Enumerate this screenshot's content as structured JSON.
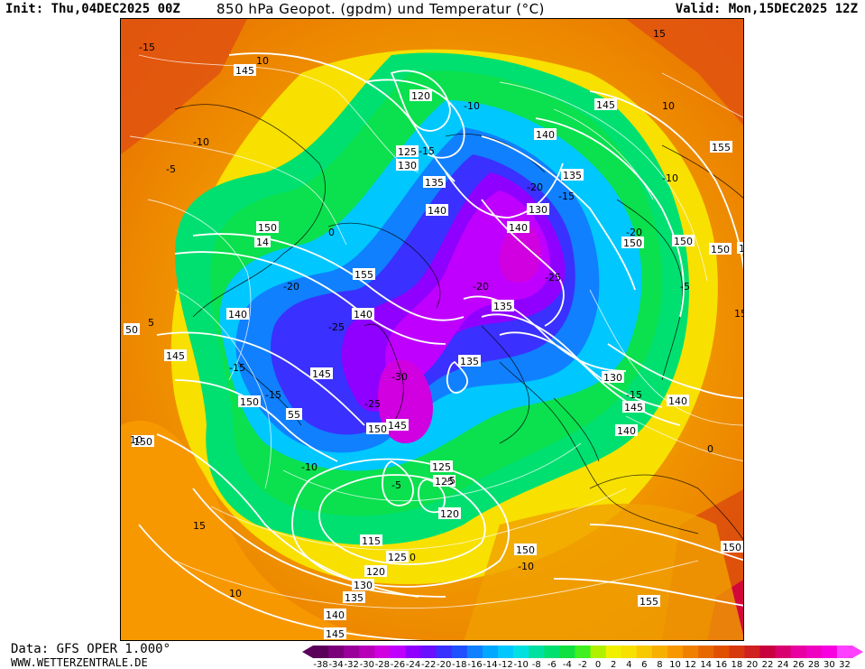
{
  "header": {
    "init": "Init: Thu,04DEC2025 00Z",
    "title": "850 hPa Geopot. (gpdm) und Temperatur (°C)",
    "valid": "Valid: Mon,15DEC2025 12Z"
  },
  "footer": {
    "data_source": "Data: GFS OPER 1.000°",
    "website": "WWW.WETTERZENTRALE.DE"
  },
  "legend": {
    "ticks": [
      "-38",
      "-34",
      "-32",
      "-30",
      "-28",
      "-26",
      "-24",
      "-22",
      "-20",
      "-18",
      "-16",
      "-14",
      "-12",
      "-10",
      "-8",
      "-6",
      "-4",
      "-2",
      "0",
      "2",
      "4",
      "6",
      "8",
      "10",
      "12",
      "14",
      "16",
      "18",
      "20",
      "22",
      "24",
      "26",
      "28",
      "30",
      "32"
    ],
    "colors": [
      "#5a005a",
      "#7a007a",
      "#9a009a",
      "#b800b8",
      "#d000e0",
      "#c000ff",
      "#9000ff",
      "#6a10ff",
      "#3a30ff",
      "#2050ff",
      "#1080ff",
      "#00a8ff",
      "#00c8ff",
      "#00e0e0",
      "#00e0a0",
      "#00e070",
      "#10e040",
      "#40f020",
      "#b0f000",
      "#f0f000",
      "#f8e000",
      "#f8c800",
      "#f8b000",
      "#f89800",
      "#f08000",
      "#e86800",
      "#e05000",
      "#d83810",
      "#d02020",
      "#c80040",
      "#d80070",
      "#e800a0",
      "#f000c0",
      "#f800e0",
      "#ff40ff"
    ]
  },
  "geopotential_labels": [
    {
      "text": "145"
    },
    {
      "text": "120"
    },
    {
      "text": "125"
    },
    {
      "text": "130"
    },
    {
      "text": "135"
    },
    {
      "text": "140"
    },
    {
      "text": "150"
    },
    {
      "text": "14"
    },
    {
      "text": "155"
    },
    {
      "text": "140"
    },
    {
      "text": "145"
    },
    {
      "text": "140"
    },
    {
      "text": "145"
    },
    {
      "text": "150"
    },
    {
      "text": "55"
    },
    {
      "text": "150"
    },
    {
      "text": "145"
    },
    {
      "text": "140"
    },
    {
      "text": "135"
    },
    {
      "text": "130"
    },
    {
      "text": "140"
    },
    {
      "text": "150"
    },
    {
      "text": "155"
    },
    {
      "text": "150"
    },
    {
      "text": "135"
    },
    {
      "text": "130"
    },
    {
      "text": "140"
    },
    {
      "text": "145"
    },
    {
      "text": "140"
    },
    {
      "text": "135"
    },
    {
      "text": "145"
    },
    {
      "text": "150"
    },
    {
      "text": "125"
    },
    {
      "text": "125"
    },
    {
      "text": "120"
    },
    {
      "text": "115"
    },
    {
      "text": "125"
    },
    {
      "text": "120"
    },
    {
      "text": "130"
    },
    {
      "text": "135"
    },
    {
      "text": "140"
    },
    {
      "text": "145"
    },
    {
      "text": "150"
    },
    {
      "text": "155"
    },
    {
      "text": "150"
    },
    {
      "text": "150"
    },
    {
      "text": "150"
    },
    {
      "text": "50"
    }
  ],
  "temperature_labels": [
    "-15",
    "-10",
    "-5",
    "0",
    "5",
    "10",
    "15",
    "-20",
    "-25",
    "-30"
  ]
}
